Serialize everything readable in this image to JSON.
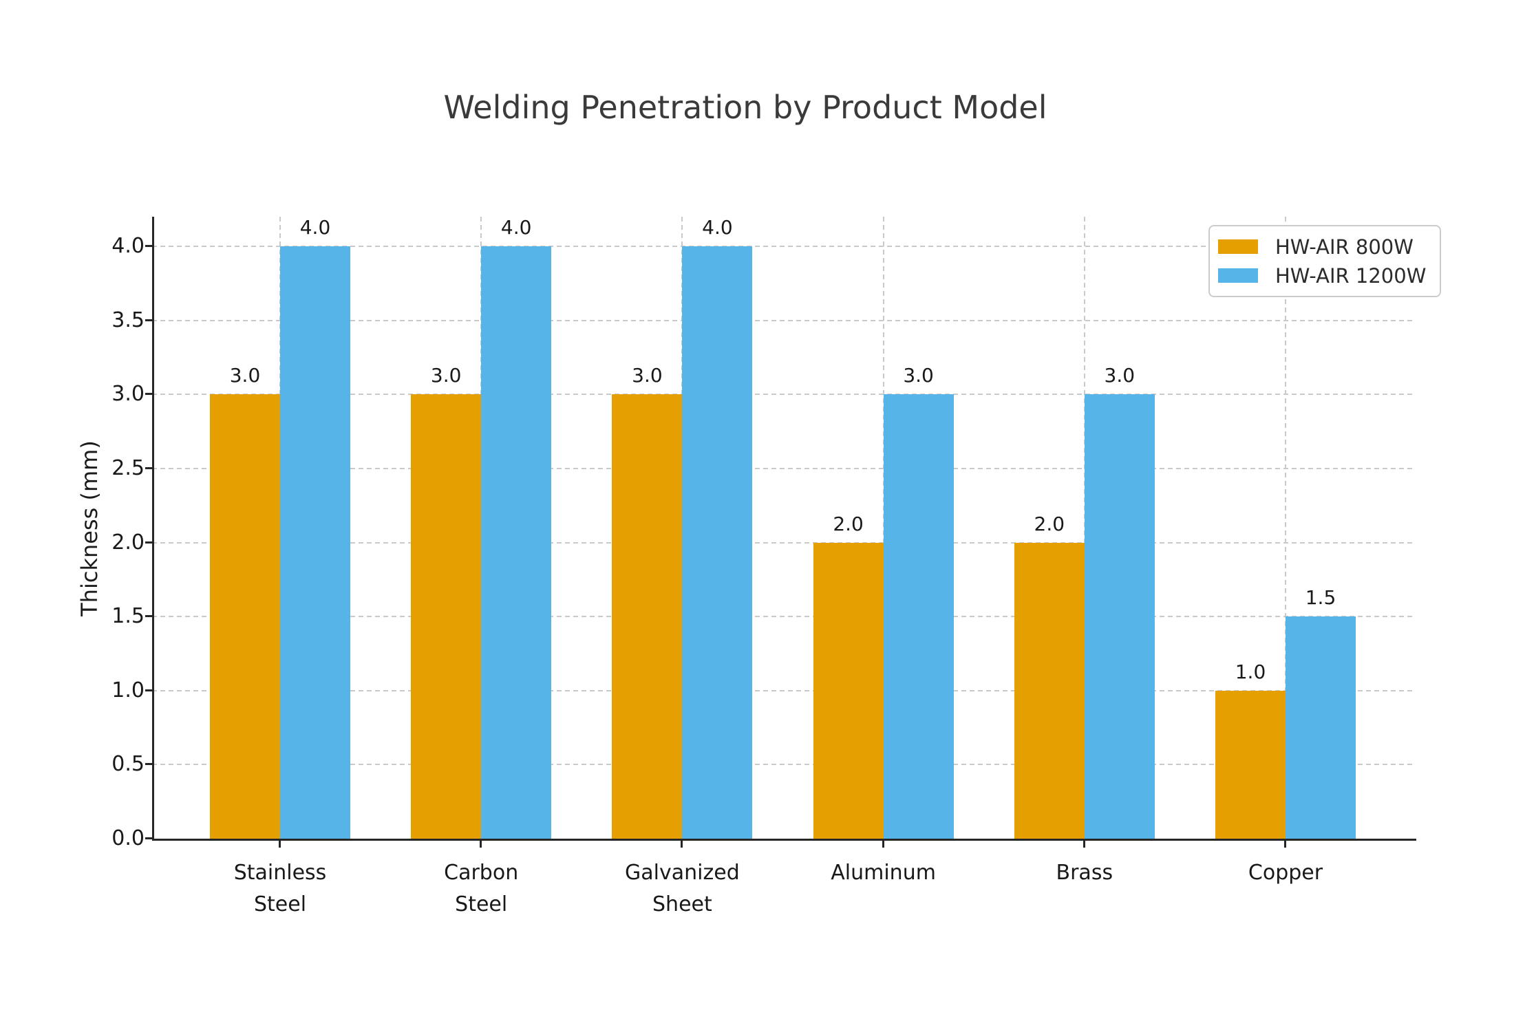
{
  "chart_data": {
    "type": "bar",
    "title": "Welding Penetration by Product Model",
    "xlabel": "",
    "ylabel": "Thickness (mm)",
    "categories": [
      "Stainless Steel",
      "Carbon Steel",
      "Galvanized Sheet",
      "Aluminum",
      "Brass",
      "Copper"
    ],
    "category_label_lines": [
      [
        "Stainless",
        "Steel"
      ],
      [
        "Carbon",
        "Steel"
      ],
      [
        "Galvanized",
        "Sheet"
      ],
      [
        "Aluminum"
      ],
      [
        "Brass"
      ],
      [
        "Copper"
      ]
    ],
    "series": [
      {
        "name": "HW-AIR 800W",
        "color": "#E69F00",
        "values": [
          3.0,
          3.0,
          3.0,
          2.0,
          2.0,
          1.0
        ],
        "value_labels": [
          "3.0",
          "3.0",
          "3.0",
          "2.0",
          "2.0",
          "1.0"
        ]
      },
      {
        "name": "HW-AIR 1200W",
        "color": "#56B4E9",
        "values": [
          4.0,
          4.0,
          4.0,
          3.0,
          3.0,
          1.5
        ],
        "value_labels": [
          "4.0",
          "4.0",
          "4.0",
          "3.0",
          "3.0",
          "1.5"
        ]
      }
    ],
    "ylim": [
      0,
      4.2
    ],
    "yticks": {
      "values": [
        0,
        0.5,
        1.0,
        1.5,
        2.0,
        2.5,
        3.0,
        3.5,
        4.0
      ],
      "labels": [
        "0.0",
        "0.5",
        "1.0",
        "1.5",
        "2.0",
        "2.5",
        "3.0",
        "3.5",
        "4.0"
      ]
    },
    "grid": {
      "horizontal": true,
      "vertical": true,
      "style": "dashed",
      "color": "#c9c9c9"
    },
    "legend": {
      "position": "upper-right"
    },
    "axis_color": "#262626",
    "text_color": "#191919"
  }
}
